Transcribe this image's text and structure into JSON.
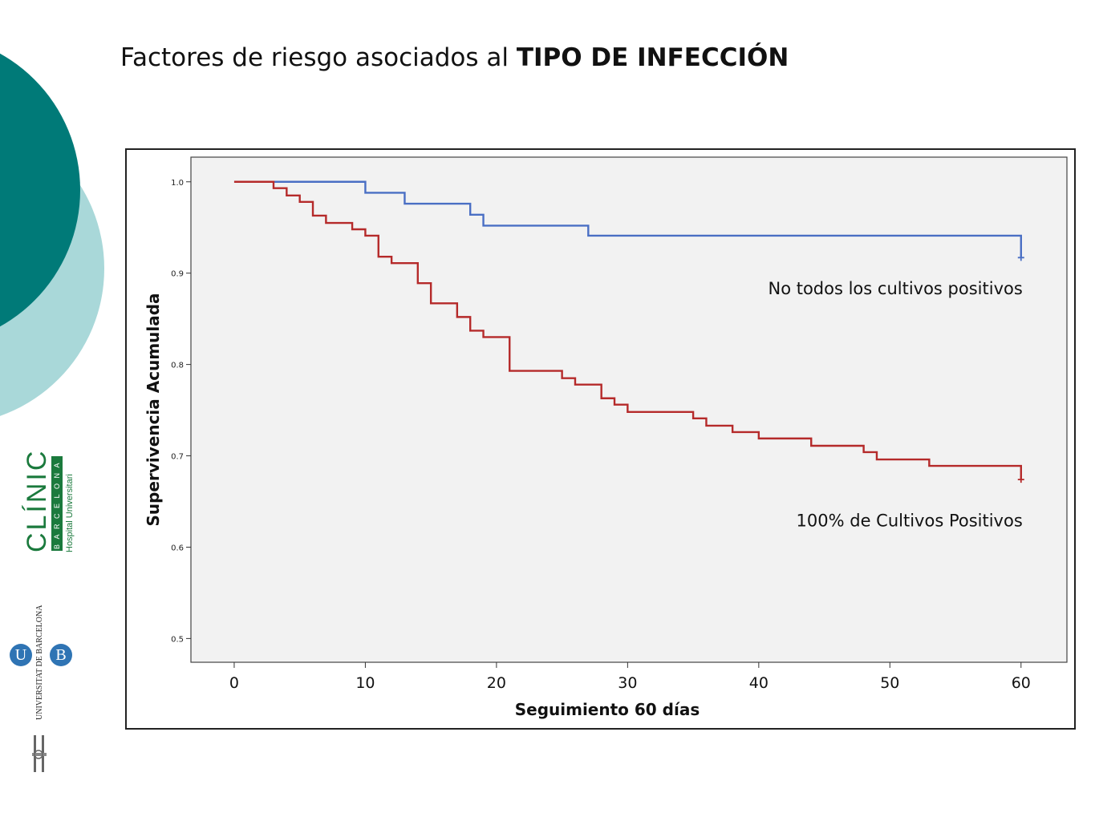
{
  "slide": {
    "title_prefix": "Factores de riesgo asociados al ",
    "title_bold": "TIPO DE INFECCIÓN"
  },
  "logos": {
    "clinic_word": "CLÍNIC",
    "clinic_city": "BARCELONA",
    "clinic_hospital": "Hospital Universitari",
    "ub_name": "UNIVERSITAT DE BARCELONA",
    "ub_u": "U",
    "ub_b": "B"
  },
  "colors": {
    "dark_teal": "#007a78",
    "light_teal": "#a9d8d9",
    "clinic_green": "#1b7a3d",
    "series_blue": "#4a6fc4",
    "series_red": "#b52a2a",
    "plot_bg": "#f2f2f2"
  },
  "chart_data": {
    "type": "line",
    "subtype": "kaplan-meier step",
    "xlabel": "Seguimiento 60 días",
    "ylabel": "Supervivencia Acumulada",
    "xlim": [
      -3.3,
      63.5
    ],
    "ylim": [
      0.474,
      1.027
    ],
    "xticks": [
      0,
      10,
      20,
      30,
      40,
      50,
      60
    ],
    "yticks": [
      0.5,
      0.6,
      0.7,
      0.8,
      0.9,
      1.0
    ],
    "ytick_labels": [
      "0.5",
      "0.6",
      "0.7",
      "0.8",
      "0.9",
      "1.0"
    ],
    "grid": false,
    "series": [
      {
        "name": "No todos los cultivos positivos",
        "color": "#4a6fc4",
        "steps": [
          [
            0,
            1.0
          ],
          [
            10,
            0.988
          ],
          [
            13,
            0.976
          ],
          [
            18,
            0.964
          ],
          [
            19,
            0.952
          ],
          [
            27,
            0.941
          ],
          [
            60,
            0.917
          ]
        ],
        "end": 60,
        "censored": [
          [
            60,
            0.917
          ]
        ]
      },
      {
        "name": "100% de Cultivos Positivos",
        "color": "#b52a2a",
        "steps": [
          [
            0,
            1.0
          ],
          [
            3,
            0.993
          ],
          [
            4,
            0.985
          ],
          [
            5,
            0.978
          ],
          [
            6,
            0.963
          ],
          [
            7,
            0.955
          ],
          [
            9,
            0.948
          ],
          [
            10,
            0.941
          ],
          [
            11,
            0.918
          ],
          [
            12,
            0.911
          ],
          [
            14,
            0.889
          ],
          [
            15,
            0.867
          ],
          [
            17,
            0.852
          ],
          [
            18,
            0.837
          ],
          [
            19,
            0.83
          ],
          [
            21,
            0.793
          ],
          [
            25,
            0.785
          ],
          [
            26,
            0.778
          ],
          [
            28,
            0.763
          ],
          [
            29,
            0.756
          ],
          [
            30,
            0.748
          ],
          [
            35,
            0.741
          ],
          [
            36,
            0.733
          ],
          [
            38,
            0.726
          ],
          [
            40,
            0.719
          ],
          [
            44,
            0.711
          ],
          [
            48,
            0.704
          ],
          [
            49,
            0.696
          ],
          [
            53,
            0.689
          ],
          [
            60,
            0.674
          ]
        ],
        "end": 60,
        "censored": [
          [
            60,
            0.674
          ]
        ]
      }
    ],
    "annotations": [
      {
        "text": "No todos los cultivos positivos",
        "series": 0
      },
      {
        "text": "100% de Cultivos Positivos",
        "series": 1
      }
    ]
  }
}
